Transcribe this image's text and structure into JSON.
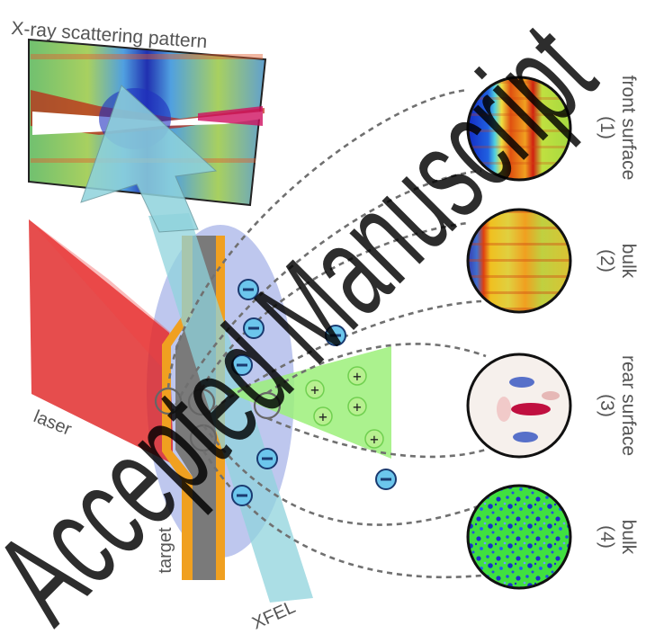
{
  "labels": {
    "pattern_title": "X-ray scattering pattern",
    "laser": "laser",
    "target": "target",
    "xfel": "XFEL"
  },
  "panels": [
    {
      "index": "(1)",
      "name": "front surface"
    },
    {
      "index": "(2)",
      "name": "bulk"
    },
    {
      "index": "(3)",
      "name": "rear surface"
    },
    {
      "index": "(4)",
      "name": "bulk"
    }
  ],
  "ion_sign": "+",
  "watermark": "Accepted Manuscript",
  "colors": {
    "laser": "#e02020",
    "xfel_beam": "#8fd3dc",
    "ion_cone": "#9cf07a",
    "plasma": "#a8b4e8",
    "target_core": "#808080",
    "target_coating": "#f0a020",
    "electron": "#6cc6ec",
    "dashed_line": "#707070",
    "watermark": "#000000"
  },
  "icons": {
    "electron": "electron-minus-icon",
    "ion": "ion-plus-icon"
  }
}
